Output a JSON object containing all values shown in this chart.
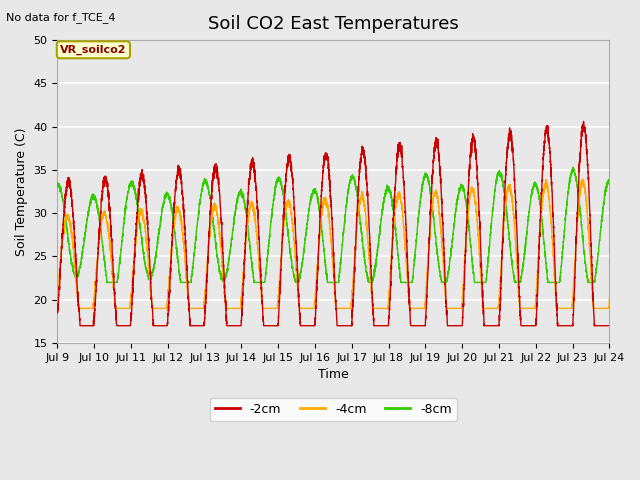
{
  "title": "Soil CO2 East Temperatures",
  "xlabel": "Time",
  "ylabel": "Soil Temperature (C)",
  "ylim": [
    15,
    50
  ],
  "yticks": [
    15,
    20,
    25,
    30,
    35,
    40,
    45,
    50
  ],
  "annotation_text": "No data for f_TCE_4",
  "legend_label": "VR_soilco2",
  "series_labels": [
    "-2cm",
    "-4cm",
    "-8cm"
  ],
  "series_colors": [
    "#cc0000",
    "#ffaa00",
    "#33cc00"
  ],
  "background_color": "#e8e8e8",
  "plot_bg_color": "#e8e8e8",
  "grid_color": "#ffffff",
  "x_start_day": 9,
  "x_end_day": 24,
  "x_tick_days": [
    9,
    10,
    11,
    12,
    13,
    14,
    15,
    16,
    17,
    18,
    19,
    20,
    21,
    22,
    23,
    24
  ],
  "title_fontsize": 13,
  "label_fontsize": 9,
  "tick_fontsize": 8,
  "figwidth": 6.4,
  "figheight": 4.8,
  "dpi": 100
}
